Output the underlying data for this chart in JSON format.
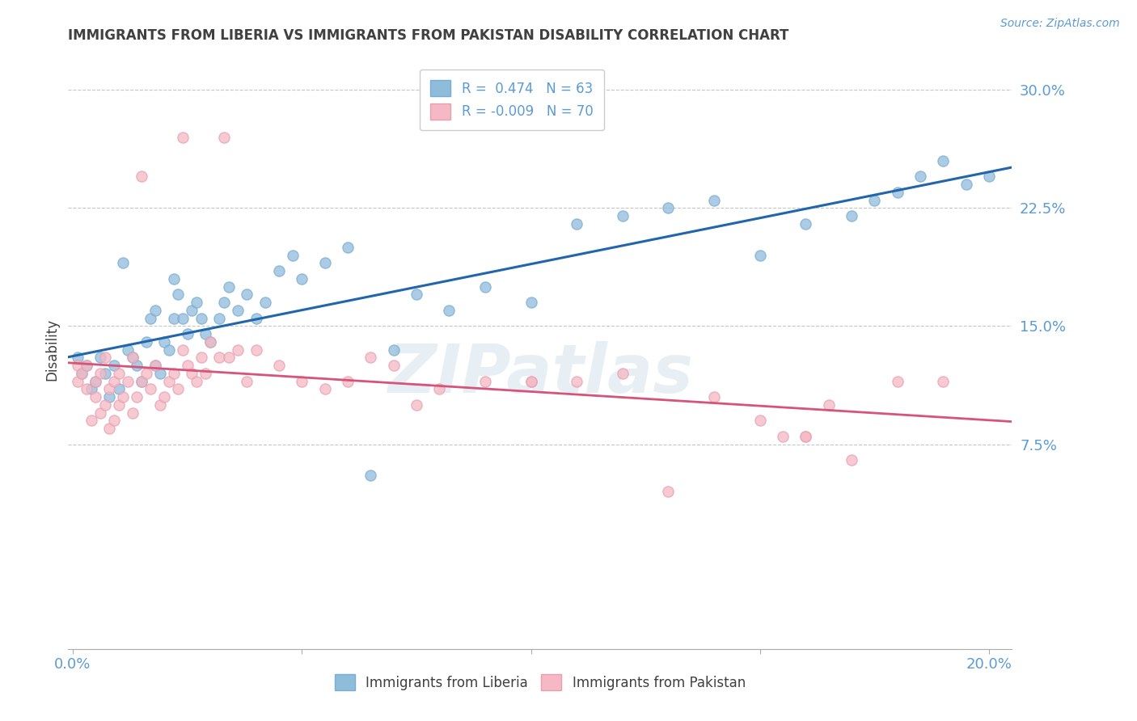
{
  "title": "IMMIGRANTS FROM LIBERIA VS IMMIGRANTS FROM PAKISTAN DISABILITY CORRELATION CHART",
  "source": "Source: ZipAtlas.com",
  "ylabel": "Disability",
  "xlim": [
    -0.001,
    0.205
  ],
  "ylim": [
    -0.055,
    0.325
  ],
  "yticks": [
    0.075,
    0.15,
    0.225,
    0.3
  ],
  "ytick_labels": [
    "7.5%",
    "15.0%",
    "22.5%",
    "30.0%"
  ],
  "xticks": [
    0.0,
    0.05,
    0.1,
    0.15,
    0.2
  ],
  "xtick_labels_show": [
    "0.0%",
    "",
    "",
    "",
    "20.0%"
  ],
  "liberia_color": "#8fbcdb",
  "liberia_edge": "#7aadd0",
  "pakistan_color": "#f5b8c4",
  "pakistan_edge": "#e8a0b0",
  "liberia_R": 0.474,
  "liberia_N": 63,
  "pakistan_R": -0.009,
  "pakistan_N": 70,
  "trend_blue": "#2166ac",
  "trend_pink": "#d6547a",
  "legend_label_1": "Immigrants from Liberia",
  "legend_label_2": "Immigrants from Pakistan",
  "watermark": "ZIPatlas",
  "title_color": "#404040",
  "axis_color": "#5b9bd5",
  "grid_color": "#b8b8b8",
  "liberia_x": [
    0.001,
    0.002,
    0.003,
    0.004,
    0.005,
    0.006,
    0.007,
    0.008,
    0.009,
    0.01,
    0.011,
    0.012,
    0.013,
    0.014,
    0.015,
    0.016,
    0.017,
    0.018,
    0.018,
    0.019,
    0.02,
    0.021,
    0.022,
    0.022,
    0.023,
    0.024,
    0.025,
    0.026,
    0.027,
    0.028,
    0.029,
    0.03,
    0.032,
    0.033,
    0.034,
    0.036,
    0.038,
    0.04,
    0.042,
    0.045,
    0.048,
    0.05,
    0.055,
    0.06,
    0.065,
    0.07,
    0.075,
    0.082,
    0.09,
    0.1,
    0.11,
    0.12,
    0.13,
    0.14,
    0.15,
    0.16,
    0.17,
    0.175,
    0.18,
    0.185,
    0.19,
    0.195,
    0.2
  ],
  "liberia_y": [
    0.13,
    0.12,
    0.125,
    0.11,
    0.115,
    0.13,
    0.12,
    0.105,
    0.125,
    0.11,
    0.19,
    0.135,
    0.13,
    0.125,
    0.115,
    0.14,
    0.155,
    0.16,
    0.125,
    0.12,
    0.14,
    0.135,
    0.155,
    0.18,
    0.17,
    0.155,
    0.145,
    0.16,
    0.165,
    0.155,
    0.145,
    0.14,
    0.155,
    0.165,
    0.175,
    0.16,
    0.17,
    0.155,
    0.165,
    0.185,
    0.195,
    0.18,
    0.19,
    0.2,
    0.055,
    0.135,
    0.17,
    0.16,
    0.175,
    0.165,
    0.215,
    0.22,
    0.225,
    0.23,
    0.195,
    0.215,
    0.22,
    0.23,
    0.235,
    0.245,
    0.255,
    0.24,
    0.245
  ],
  "pakistan_x": [
    0.001,
    0.001,
    0.002,
    0.003,
    0.003,
    0.004,
    0.005,
    0.005,
    0.006,
    0.006,
    0.007,
    0.007,
    0.008,
    0.008,
    0.009,
    0.009,
    0.01,
    0.01,
    0.011,
    0.012,
    0.013,
    0.013,
    0.014,
    0.015,
    0.015,
    0.016,
    0.017,
    0.018,
    0.019,
    0.02,
    0.021,
    0.022,
    0.023,
    0.024,
    0.025,
    0.026,
    0.027,
    0.028,
    0.029,
    0.03,
    0.032,
    0.034,
    0.036,
    0.038,
    0.04,
    0.045,
    0.05,
    0.055,
    0.06,
    0.065,
    0.07,
    0.075,
    0.08,
    0.09,
    0.1,
    0.11,
    0.12,
    0.13,
    0.14,
    0.15,
    0.16,
    0.17,
    0.18,
    0.19,
    0.033,
    0.024,
    0.1,
    0.155,
    0.165,
    0.16
  ],
  "pakistan_y": [
    0.125,
    0.115,
    0.12,
    0.11,
    0.125,
    0.09,
    0.105,
    0.115,
    0.095,
    0.12,
    0.1,
    0.13,
    0.085,
    0.11,
    0.115,
    0.09,
    0.1,
    0.12,
    0.105,
    0.115,
    0.095,
    0.13,
    0.105,
    0.115,
    0.245,
    0.12,
    0.11,
    0.125,
    0.1,
    0.105,
    0.115,
    0.12,
    0.11,
    0.135,
    0.125,
    0.12,
    0.115,
    0.13,
    0.12,
    0.14,
    0.13,
    0.13,
    0.135,
    0.115,
    0.135,
    0.125,
    0.115,
    0.11,
    0.115,
    0.13,
    0.125,
    0.1,
    0.11,
    0.115,
    0.115,
    0.115,
    0.12,
    0.045,
    0.105,
    0.09,
    0.08,
    0.065,
    0.115,
    0.115,
    0.27,
    0.27,
    0.115,
    0.08,
    0.1,
    0.08
  ]
}
